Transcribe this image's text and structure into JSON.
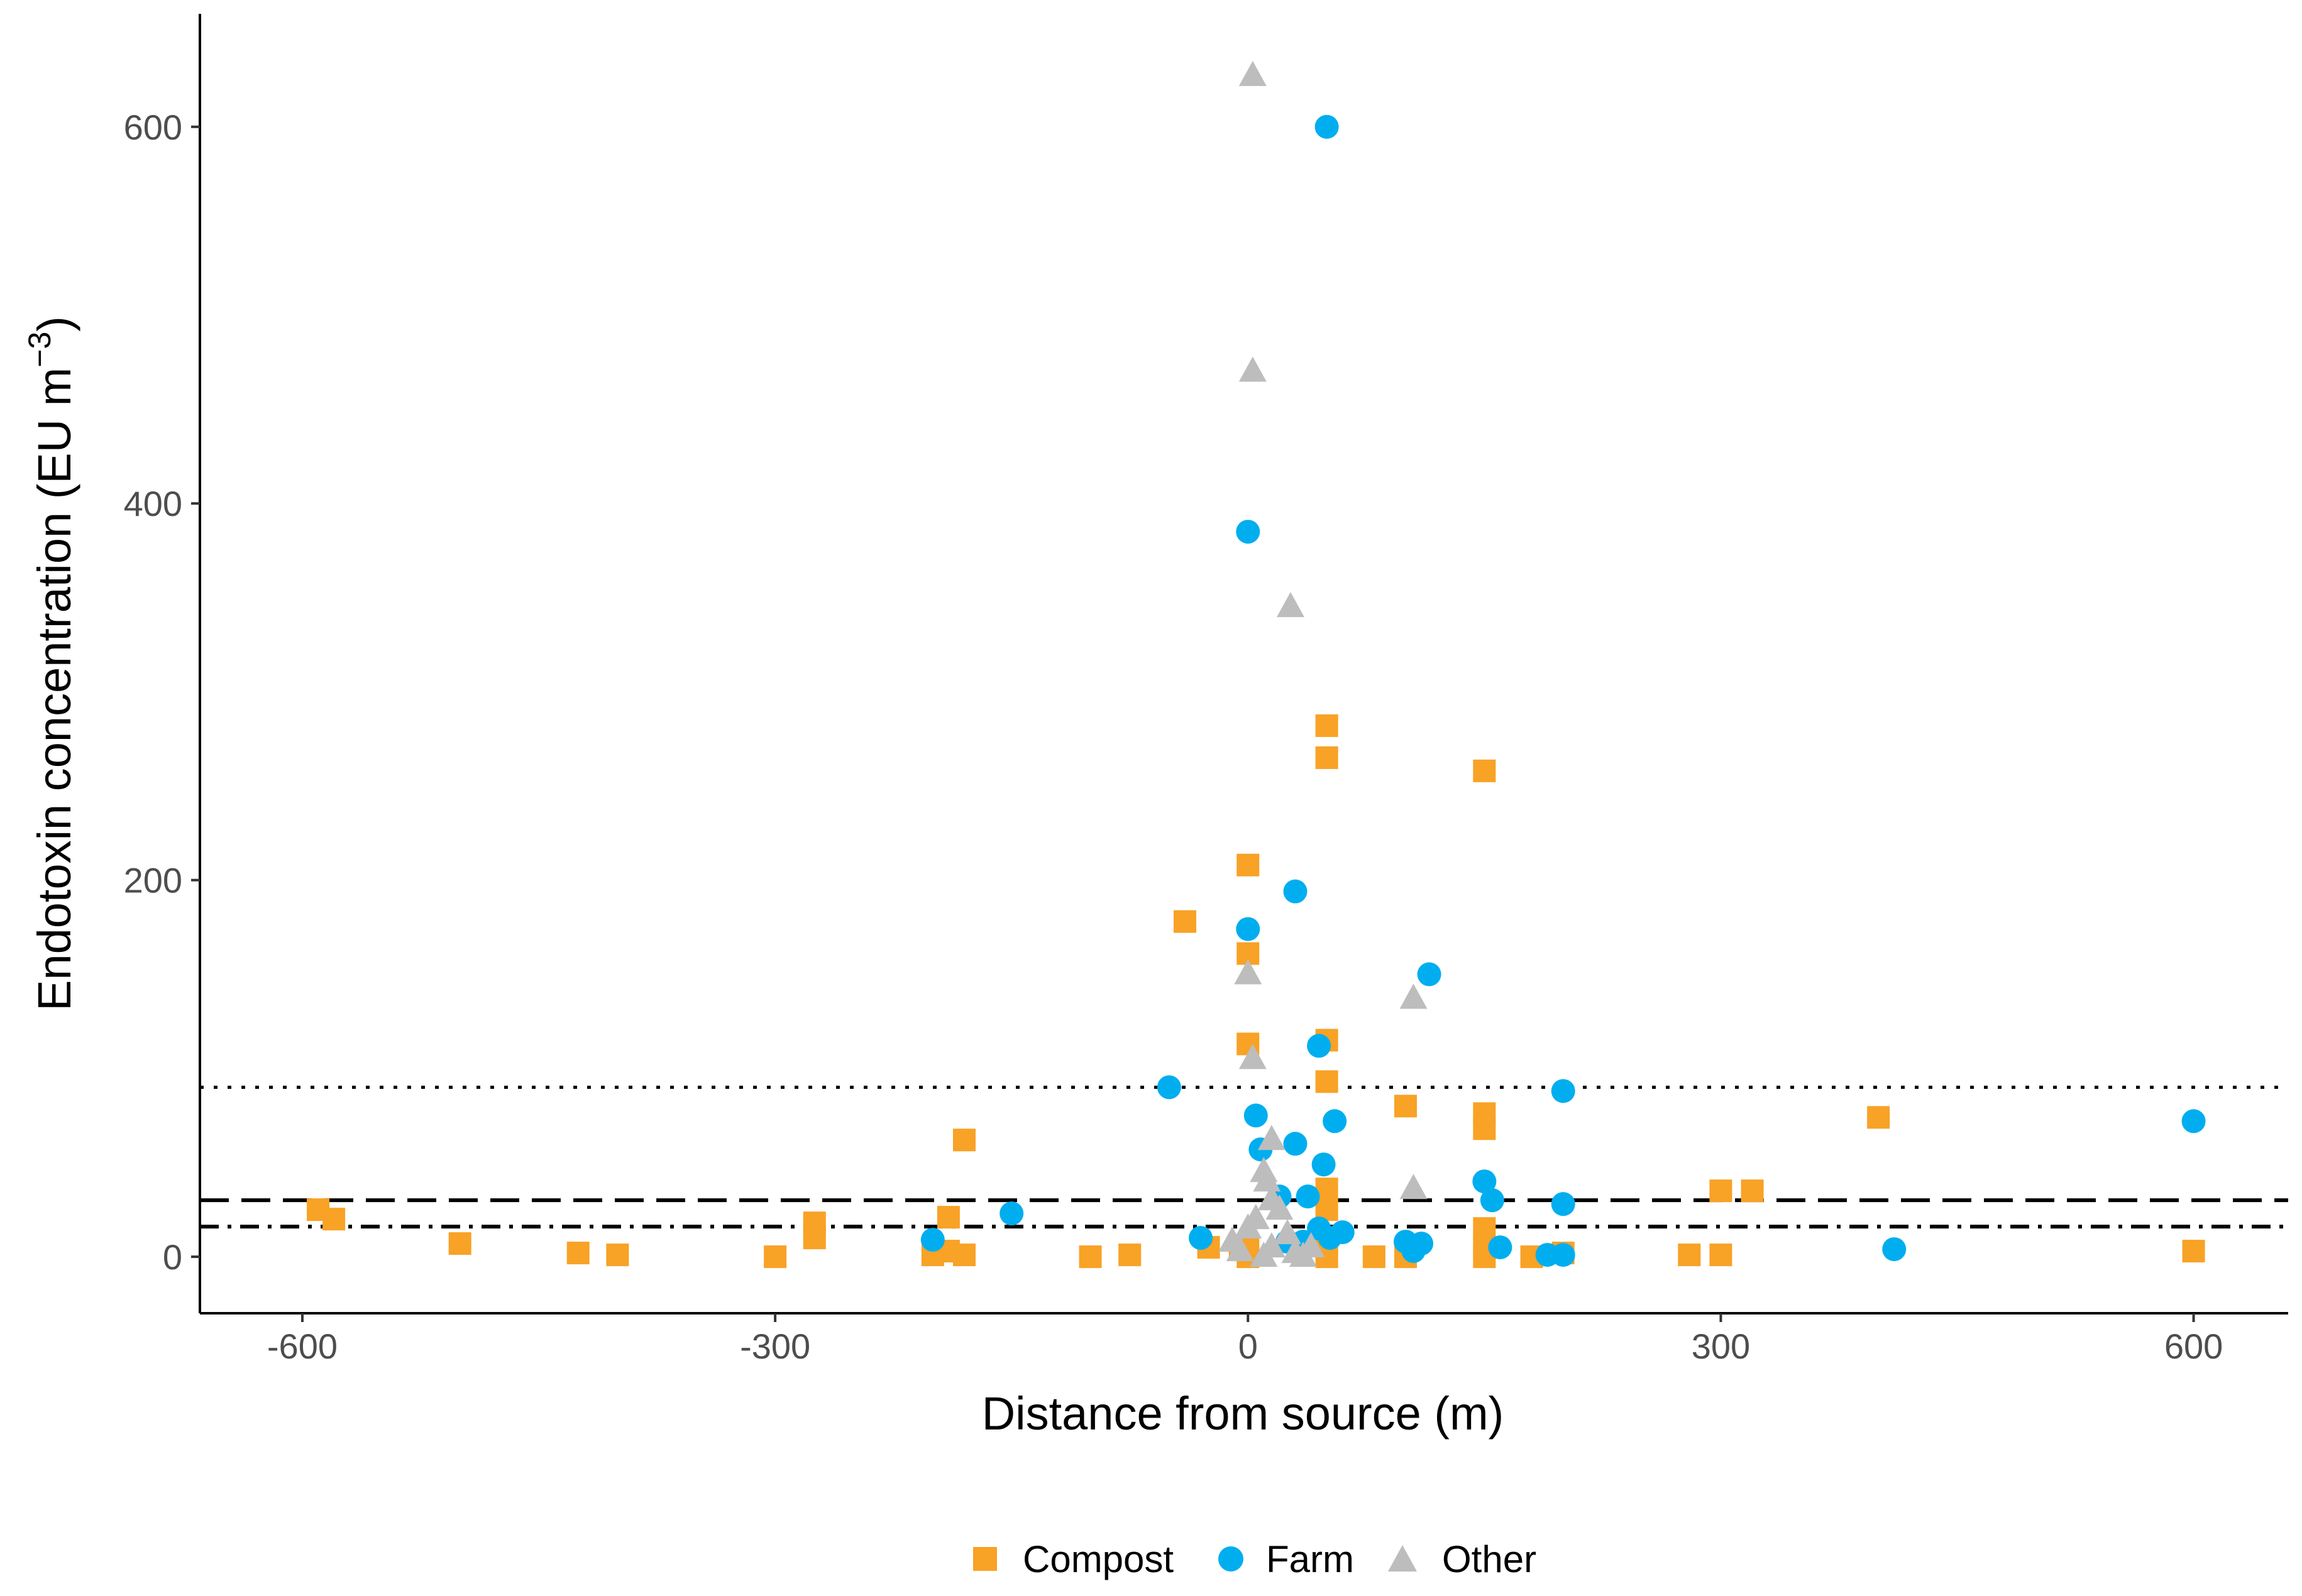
{
  "chart_data": {
    "type": "scatter",
    "xlabel": "Distance from source (m)",
    "ylabel": {
      "main": "Endotoxin concentration (EU m",
      "sup": "−3",
      "close": ")"
    },
    "xlim": [
      -665,
      660
    ],
    "ylim": [
      -30,
      660
    ],
    "x_ticks": [
      -600,
      -300,
      0,
      300,
      600
    ],
    "x_tick_labels": [
      "-600",
      "-300",
      "0",
      "300",
      "600"
    ],
    "y_ticks": [
      0,
      200,
      400,
      600
    ],
    "y_tick_labels": [
      "0",
      "200",
      "400",
      "600"
    ],
    "grid": false,
    "legend_position": "bottom",
    "reference_lines": [
      {
        "name": "dotted-line",
        "y": 90,
        "style": "dotted"
      },
      {
        "name": "dashed-line",
        "y": 30,
        "style": "dashed"
      },
      {
        "name": "dashdot-line",
        "y": 16,
        "style": "dashdot"
      }
    ],
    "series": [
      {
        "name": "Compost",
        "shape": "square",
        "color": "#F8A226",
        "points": [
          [
            -590,
            25
          ],
          [
            -580,
            20
          ],
          [
            -500,
            7
          ],
          [
            -425,
            2
          ],
          [
            -400,
            1
          ],
          [
            -300,
            0
          ],
          [
            -275,
            18
          ],
          [
            -275,
            10
          ],
          [
            -200,
            1
          ],
          [
            -190,
            3
          ],
          [
            -190,
            21
          ],
          [
            -180,
            62
          ],
          [
            -180,
            1
          ],
          [
            -100,
            0
          ],
          [
            -75,
            1
          ],
          [
            -40,
            178
          ],
          [
            -25,
            5
          ],
          [
            -5,
            5
          ],
          [
            0,
            208
          ],
          [
            0,
            161
          ],
          [
            0,
            113
          ],
          [
            0,
            0
          ],
          [
            0,
            5
          ],
          [
            50,
            282
          ],
          [
            50,
            265
          ],
          [
            50,
            115
          ],
          [
            50,
            93
          ],
          [
            50,
            36
          ],
          [
            50,
            25
          ],
          [
            50,
            5
          ],
          [
            50,
            0
          ],
          [
            80,
            0
          ],
          [
            100,
            80
          ],
          [
            100,
            0
          ],
          [
            150,
            258
          ],
          [
            150,
            76
          ],
          [
            150,
            68
          ],
          [
            150,
            15
          ],
          [
            150,
            5
          ],
          [
            150,
            0
          ],
          [
            180,
            0
          ],
          [
            200,
            2
          ],
          [
            280,
            1
          ],
          [
            300,
            1
          ],
          [
            300,
            35
          ],
          [
            320,
            35
          ],
          [
            400,
            74
          ],
          [
            600,
            3
          ]
        ]
      },
      {
        "name": "Farm",
        "shape": "circle",
        "color": "#00AEEF",
        "points": [
          [
            -200,
            9
          ],
          [
            -150,
            23
          ],
          [
            -50,
            90
          ],
          [
            -30,
            10
          ],
          [
            0,
            385
          ],
          [
            0,
            174
          ],
          [
            5,
            75
          ],
          [
            8,
            57
          ],
          [
            20,
            32
          ],
          [
            25,
            8
          ],
          [
            30,
            194
          ],
          [
            30,
            60
          ],
          [
            35,
            8
          ],
          [
            38,
            32
          ],
          [
            45,
            112
          ],
          [
            45,
            15
          ],
          [
            48,
            49
          ],
          [
            50,
            600
          ],
          [
            52,
            10
          ],
          [
            55,
            72
          ],
          [
            60,
            13
          ],
          [
            100,
            8
          ],
          [
            105,
            3
          ],
          [
            110,
            7
          ],
          [
            115,
            150
          ],
          [
            150,
            40
          ],
          [
            155,
            30
          ],
          [
            160,
            5
          ],
          [
            190,
            1
          ],
          [
            200,
            1
          ],
          [
            200,
            88
          ],
          [
            200,
            28
          ],
          [
            410,
            4
          ],
          [
            600,
            72
          ]
        ]
      },
      {
        "name": "Other",
        "shape": "triangle",
        "color": "#BDBDBD",
        "points": [
          [
            3,
            627
          ],
          [
            3,
            470
          ],
          [
            27,
            345
          ],
          [
            0,
            150
          ],
          [
            3,
            105
          ],
          [
            105,
            137
          ],
          [
            105,
            36
          ],
          [
            15,
            62
          ],
          [
            10,
            45
          ],
          [
            12,
            40
          ],
          [
            15,
            30
          ],
          [
            20,
            25
          ],
          [
            5,
            20
          ],
          [
            0,
            15
          ],
          [
            25,
            12
          ],
          [
            -10,
            8
          ],
          [
            15,
            5
          ],
          [
            30,
            2
          ],
          [
            35,
            0
          ],
          [
            10,
            0
          ],
          [
            -5,
            3
          ],
          [
            40,
            5
          ]
        ]
      }
    ]
  }
}
